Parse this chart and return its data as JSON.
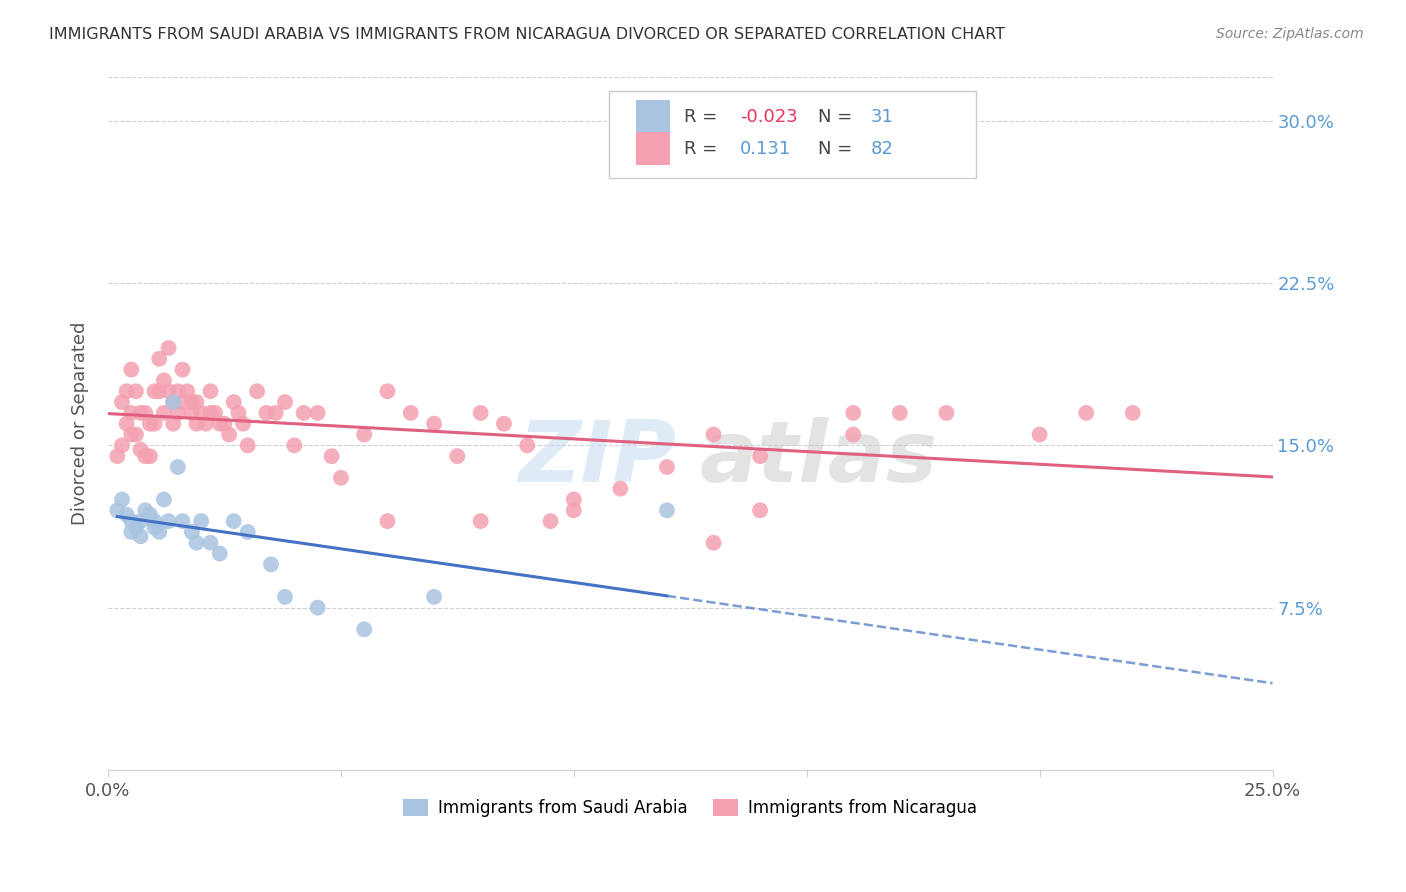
{
  "title": "IMMIGRANTS FROM SAUDI ARABIA VS IMMIGRANTS FROM NICARAGUA DIVORCED OR SEPARATED CORRELATION CHART",
  "source": "Source: ZipAtlas.com",
  "ylabel": "Divorced or Separated",
  "xlim": [
    0.0,
    0.25
  ],
  "ylim": [
    0.0,
    0.32
  ],
  "x_ticks": [
    0.0,
    0.05,
    0.1,
    0.15,
    0.2,
    0.25
  ],
  "x_tick_labels": [
    "0.0%",
    "",
    "",
    "",
    "",
    "25.0%"
  ],
  "y_ticks": [
    0.0,
    0.075,
    0.15,
    0.225,
    0.3
  ],
  "y_tick_labels_right": [
    "",
    "7.5%",
    "15.0%",
    "22.5%",
    "30.0%"
  ],
  "saudi_color": "#a8c4e0",
  "nicaragua_color": "#f4a0b0",
  "saudi_R": -0.023,
  "saudi_N": 31,
  "nicaragua_R": 0.131,
  "nicaragua_N": 82,
  "legend_label_saudi": "Immigrants from Saudi Arabia",
  "legend_label_nicaragua": "Immigrants from Nicaragua",
  "saudi_x": [
    0.002,
    0.003,
    0.004,
    0.005,
    0.005,
    0.006,
    0.007,
    0.007,
    0.008,
    0.009,
    0.01,
    0.01,
    0.011,
    0.012,
    0.013,
    0.014,
    0.015,
    0.016,
    0.018,
    0.019,
    0.02,
    0.022,
    0.024,
    0.027,
    0.03,
    0.035,
    0.038,
    0.045,
    0.055,
    0.07,
    0.12
  ],
  "saudi_y": [
    0.12,
    0.125,
    0.118,
    0.115,
    0.11,
    0.112,
    0.108,
    0.115,
    0.12,
    0.118,
    0.115,
    0.112,
    0.11,
    0.125,
    0.115,
    0.17,
    0.14,
    0.115,
    0.11,
    0.105,
    0.115,
    0.105,
    0.1,
    0.115,
    0.11,
    0.095,
    0.08,
    0.075,
    0.065,
    0.08,
    0.12
  ],
  "nicaragua_x": [
    0.002,
    0.003,
    0.003,
    0.004,
    0.004,
    0.005,
    0.005,
    0.005,
    0.006,
    0.006,
    0.007,
    0.007,
    0.008,
    0.008,
    0.009,
    0.009,
    0.01,
    0.01,
    0.011,
    0.011,
    0.012,
    0.012,
    0.013,
    0.013,
    0.014,
    0.014,
    0.015,
    0.015,
    0.016,
    0.016,
    0.017,
    0.018,
    0.018,
    0.019,
    0.019,
    0.02,
    0.021,
    0.022,
    0.022,
    0.023,
    0.024,
    0.025,
    0.026,
    0.027,
    0.028,
    0.029,
    0.03,
    0.032,
    0.034,
    0.036,
    0.038,
    0.04,
    0.042,
    0.045,
    0.048,
    0.05,
    0.055,
    0.06,
    0.065,
    0.07,
    0.075,
    0.08,
    0.085,
    0.09,
    0.095,
    0.1,
    0.11,
    0.12,
    0.13,
    0.14,
    0.16,
    0.17,
    0.18,
    0.2,
    0.21,
    0.22,
    0.06,
    0.08,
    0.1,
    0.13,
    0.14,
    0.16
  ],
  "nicaragua_y": [
    0.145,
    0.15,
    0.17,
    0.16,
    0.175,
    0.155,
    0.165,
    0.185,
    0.155,
    0.175,
    0.148,
    0.165,
    0.145,
    0.165,
    0.145,
    0.16,
    0.16,
    0.175,
    0.175,
    0.19,
    0.18,
    0.165,
    0.195,
    0.175,
    0.17,
    0.16,
    0.175,
    0.165,
    0.185,
    0.17,
    0.175,
    0.17,
    0.165,
    0.17,
    0.16,
    0.165,
    0.16,
    0.165,
    0.175,
    0.165,
    0.16,
    0.16,
    0.155,
    0.17,
    0.165,
    0.16,
    0.15,
    0.175,
    0.165,
    0.165,
    0.17,
    0.15,
    0.165,
    0.165,
    0.145,
    0.135,
    0.155,
    0.175,
    0.165,
    0.16,
    0.145,
    0.165,
    0.16,
    0.15,
    0.115,
    0.125,
    0.13,
    0.14,
    0.155,
    0.145,
    0.155,
    0.165,
    0.165,
    0.155,
    0.165,
    0.165,
    0.115,
    0.115,
    0.12,
    0.105,
    0.12,
    0.165
  ]
}
